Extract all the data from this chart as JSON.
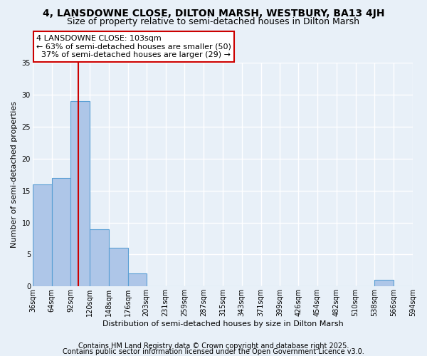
{
  "title1": "4, LANSDOWNE CLOSE, DILTON MARSH, WESTBURY, BA13 4JH",
  "title2": "Size of property relative to semi-detached houses in Dilton Marsh",
  "xlabel": "Distribution of semi-detached houses by size in Dilton Marsh",
  "ylabel": "Number of semi-detached properties",
  "bin_edges": [
    36,
    64,
    92,
    120,
    148,
    176,
    203,
    231,
    259,
    287,
    315,
    343,
    371,
    399,
    426,
    454,
    482,
    510,
    538,
    566,
    594
  ],
  "counts": [
    16,
    17,
    29,
    9,
    6,
    2,
    0,
    0,
    0,
    0,
    0,
    0,
    0,
    0,
    0,
    0,
    0,
    0,
    1,
    0
  ],
  "bar_color": "#aec6e8",
  "bar_edge_color": "#5a9fd4",
  "property_size": 103,
  "red_line_color": "#cc0000",
  "annotation_line1": "4 LANSDOWNE CLOSE: 103sqm",
  "annotation_line2": "← 63% of semi-detached houses are smaller (50)",
  "annotation_line3": "  37% of semi-detached houses are larger (29) →",
  "annotation_box_color": "#ffffff",
  "annotation_box_edge": "#cc0000",
  "footer1": "Contains HM Land Registry data © Crown copyright and database right 2025.",
  "footer2": "Contains public sector information licensed under the Open Government Licence v3.0.",
  "ylim": [
    0,
    35
  ],
  "yticks": [
    0,
    5,
    10,
    15,
    20,
    25,
    30,
    35
  ],
  "background_color": "#e8f0f8",
  "grid_color": "#ffffff",
  "title1_fontsize": 10,
  "title2_fontsize": 9,
  "annotation_fontsize": 8,
  "axis_fontsize": 8,
  "tick_fontsize": 7,
  "footer_fontsize": 7
}
